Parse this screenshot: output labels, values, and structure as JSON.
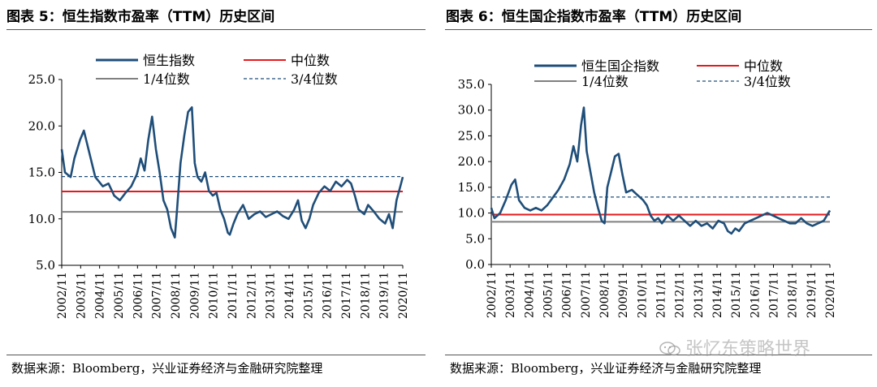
{
  "figures": [
    {
      "title": "图表 5：恒生指数市盈率（TTM）历史区间",
      "source": "数据来源：Bloomberg，兴业证券经济与金融研究院整理"
    },
    {
      "title": "图表 6：恒生国企指数市盈率（TTM）历史区间",
      "source": "数据来源：Bloomberg，兴业证券经济与金融研究院整理"
    }
  ],
  "watermark": {
    "text": "张忆东策略世界",
    "icon": "wechat-icon"
  },
  "chart_data": [
    {
      "type": "line",
      "title": "",
      "xlabel": "",
      "ylabel": "",
      "ylim": [
        5,
        25
      ],
      "yticks": [
        "5.0",
        "10.0",
        "15.0",
        "20.0",
        "25.0"
      ],
      "xticks": [
        "2002/11",
        "2003/11",
        "2004/11",
        "2005/11",
        "2006/11",
        "2007/11",
        "2008/11",
        "2009/11",
        "2010/11",
        "2011/11",
        "2012/11",
        "2013/11",
        "2014/11",
        "2015/11",
        "2016/11",
        "2017/11",
        "2018/11",
        "2019/11",
        "2020/11"
      ],
      "legend_position": "top",
      "grid": false,
      "series": [
        {
          "name": "恒生指数",
          "color": "#1f4e79",
          "x": [
            2002.83,
            2003.0,
            2003.3,
            2003.5,
            2003.8,
            2004.0,
            2004.3,
            2004.6,
            2004.8,
            2005.0,
            2005.3,
            2005.6,
            2005.9,
            2006.2,
            2006.5,
            2006.8,
            2007.0,
            2007.2,
            2007.4,
            2007.6,
            2007.8,
            2008.0,
            2008.2,
            2008.4,
            2008.6,
            2008.8,
            2008.9,
            2009.1,
            2009.3,
            2009.5,
            2009.7,
            2009.85,
            2010.0,
            2010.2,
            2010.4,
            2010.6,
            2010.8,
            2011.0,
            2011.2,
            2011.4,
            2011.6,
            2011.7,
            2011.9,
            2012.1,
            2012.4,
            2012.7,
            2013.0,
            2013.3,
            2013.6,
            2013.9,
            2014.2,
            2014.5,
            2014.8,
            2015.1,
            2015.3,
            2015.5,
            2015.7,
            2015.9,
            2016.1,
            2016.4,
            2016.7,
            2017.0,
            2017.3,
            2017.6,
            2017.9,
            2018.1,
            2018.3,
            2018.5,
            2018.8,
            2019.0,
            2019.3,
            2019.6,
            2019.9,
            2020.1,
            2020.3,
            2020.5,
            2020.7,
            2020.83
          ],
          "values": [
            17.5,
            15.0,
            14.5,
            16.5,
            18.5,
            19.5,
            17.0,
            14.5,
            14.0,
            13.5,
            13.8,
            12.5,
            12.0,
            12.8,
            13.5,
            14.8,
            16.5,
            15.2,
            18.5,
            21.0,
            17.5,
            15.0,
            12.0,
            11.0,
            9.0,
            8.0,
            10.5,
            16.0,
            19.0,
            21.5,
            22.0,
            16.0,
            14.5,
            14.0,
            15.0,
            13.0,
            12.5,
            12.8,
            11.0,
            10.0,
            8.5,
            8.3,
            9.5,
            10.5,
            11.5,
            10.0,
            10.5,
            10.8,
            10.2,
            10.5,
            10.8,
            10.3,
            10.0,
            11.0,
            12.0,
            9.8,
            9.0,
            10.0,
            11.5,
            12.8,
            13.5,
            13.0,
            14.0,
            13.5,
            14.2,
            13.8,
            12.5,
            11.0,
            10.5,
            11.5,
            10.8,
            10.0,
            9.5,
            10.5,
            9.0,
            12.0,
            13.5,
            14.5
          ]
        },
        {
          "name": "中位数",
          "color": "#e41a1c",
          "style": "solid",
          "values": [
            12.95
          ]
        },
        {
          "name": "1/4位数",
          "color": "#808080",
          "style": "solid",
          "values": [
            10.75
          ]
        },
        {
          "name": "3/4位数",
          "color": "#1f4e79",
          "style": "dashed",
          "values": [
            14.55
          ]
        }
      ]
    },
    {
      "type": "line",
      "title": "",
      "xlabel": "",
      "ylabel": "",
      "ylim": [
        0,
        35
      ],
      "yticks": [
        "0.0",
        "5.0",
        "10.0",
        "15.0",
        "20.0",
        "25.0",
        "30.0",
        "35.0"
      ],
      "xticks": [
        "2002/11",
        "2003/11",
        "2004/11",
        "2005/11",
        "2006/11",
        "2007/11",
        "2008/11",
        "2009/11",
        "2010/11",
        "2011/11",
        "2012/11",
        "2013/11",
        "2014/11",
        "2015/11",
        "2016/11",
        "2017/11",
        "2018/11",
        "2019/11",
        "2020/11"
      ],
      "legend_position": "top",
      "grid": false,
      "series": [
        {
          "name": "恒生国企指数",
          "color": "#1f4e79",
          "x": [
            2002.83,
            2003.0,
            2003.3,
            2003.6,
            2003.9,
            2004.1,
            2004.3,
            2004.6,
            2004.9,
            2005.2,
            2005.5,
            2005.8,
            2006.1,
            2006.4,
            2006.7,
            2007.0,
            2007.2,
            2007.4,
            2007.6,
            2007.75,
            2007.9,
            2008.1,
            2008.3,
            2008.5,
            2008.7,
            2008.85,
            2009.0,
            2009.2,
            2009.4,
            2009.6,
            2009.8,
            2010.0,
            2010.3,
            2010.6,
            2010.9,
            2011.1,
            2011.3,
            2011.5,
            2011.7,
            2011.9,
            2012.2,
            2012.5,
            2012.8,
            2013.1,
            2013.4,
            2013.7,
            2014.0,
            2014.3,
            2014.6,
            2014.9,
            2015.2,
            2015.4,
            2015.6,
            2015.8,
            2016.0,
            2016.3,
            2016.6,
            2016.9,
            2017.2,
            2017.5,
            2017.8,
            2018.1,
            2018.4,
            2018.7,
            2019.0,
            2019.3,
            2019.6,
            2019.9,
            2020.2,
            2020.5,
            2020.83
          ],
          "values": [
            11.0,
            9.0,
            10.0,
            12.5,
            15.5,
            16.5,
            12.5,
            11.0,
            10.5,
            11.0,
            10.5,
            11.5,
            13.0,
            14.5,
            16.5,
            19.5,
            23.0,
            20.0,
            27.0,
            30.5,
            22.0,
            18.0,
            14.0,
            11.0,
            8.5,
            8.0,
            15.0,
            18.0,
            21.0,
            21.5,
            17.5,
            14.0,
            14.5,
            13.5,
            12.5,
            11.5,
            9.5,
            8.5,
            9.0,
            8.0,
            9.5,
            8.5,
            9.5,
            8.5,
            7.5,
            8.5,
            7.5,
            8.0,
            7.0,
            8.5,
            8.0,
            6.5,
            6.0,
            7.0,
            6.5,
            8.0,
            8.5,
            9.0,
            9.5,
            10.0,
            9.5,
            9.0,
            8.5,
            8.0,
            8.0,
            9.0,
            8.0,
            7.5,
            8.0,
            8.5,
            10.5
          ]
        },
        {
          "name": "中位数",
          "color": "#e41a1c",
          "style": "solid",
          "values": [
            9.7
          ]
        },
        {
          "name": "1/4位数",
          "color": "#808080",
          "style": "solid",
          "values": [
            8.3
          ]
        },
        {
          "name": "3/4位数",
          "color": "#1f4e79",
          "style": "dashed",
          "values": [
            13.1
          ]
        }
      ]
    }
  ]
}
